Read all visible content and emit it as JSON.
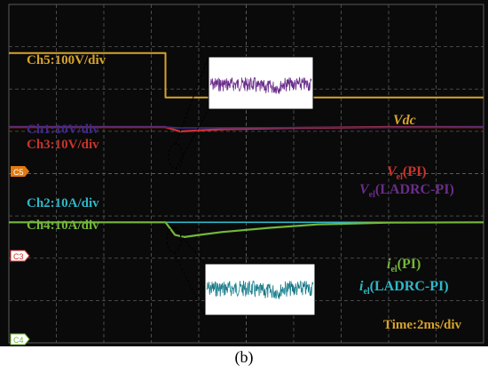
{
  "caption": "(b)",
  "colors": {
    "screen": "#0a0a0a",
    "grid": "#5a5a5a",
    "ch5": "#d7a32c",
    "ch1": "#3d2a8c",
    "ch3": "#c8342e",
    "ch2": "#2fb8c8",
    "ch4": "#74b83a",
    "inset_bg": "#ffffff",
    "inset1_trace": "#6a2d8a",
    "inset2_trace": "#2fb8c8"
  },
  "channel_labels": {
    "ch5": "Ch5:100V/div",
    "ch1": "Ch1:10V/div",
    "ch3": "Ch3:10V/div",
    "ch2": "Ch2:10A/div",
    "ch4": "Ch4:10A/div",
    "time": "Time:2ms/div"
  },
  "markers": {
    "c5": "C5",
    "c3": "C3",
    "c4": "C4"
  },
  "legend": {
    "vdc": "Vdc",
    "vel_pi_main": "V",
    "vel_pi_sub": "el",
    "vel_pi_suffix": "(PI)",
    "vel_ladrc_main": "V",
    "vel_ladrc_sub": "el",
    "vel_ladrc_suffix": "(LADRC-PI)",
    "iel_pi_main": "i",
    "iel_pi_sub": "el",
    "iel_pi_suffix": "(PI)",
    "iel_ladrc_main": "i",
    "iel_ladrc_sub": "el",
    "iel_ladrc_suffix": "(LADRC-PI)"
  },
  "chart_data": {
    "type": "line",
    "x_unit": "div",
    "xlim": [
      0,
      10
    ],
    "ylim": [
      -4,
      4
    ],
    "grid": true,
    "step_time_div": 3.3,
    "series": [
      {
        "name": "Vdc",
        "x": [
          0,
          3.3,
          3.3,
          10
        ],
        "y": [
          2.85,
          2.85,
          1.8,
          1.8
        ]
      },
      {
        "name": "Vel(PI)",
        "x": [
          0,
          3.3,
          3.6,
          4.5,
          6,
          8,
          10
        ],
        "y": [
          1.1,
          1.1,
          1.0,
          1.05,
          1.08,
          1.1,
          1.1
        ]
      },
      {
        "name": "Vel(LADRC-PI)",
        "x": [
          0,
          3.3,
          3.6,
          10
        ],
        "y": [
          1.1,
          1.1,
          1.08,
          1.1
        ]
      },
      {
        "name": "iel(PI)",
        "x": [
          0,
          3.3,
          3.5,
          3.7,
          4.0,
          4.5,
          5.5,
          6.5,
          8,
          10
        ],
        "y": [
          -1.15,
          -1.15,
          -1.45,
          -1.5,
          -1.45,
          -1.38,
          -1.28,
          -1.2,
          -1.16,
          -1.15
        ]
      },
      {
        "name": "iel(LADRC-PI)",
        "x": [
          0,
          3.3,
          10
        ],
        "y": [
          -1.15,
          -1.15,
          -1.15
        ]
      }
    ]
  }
}
